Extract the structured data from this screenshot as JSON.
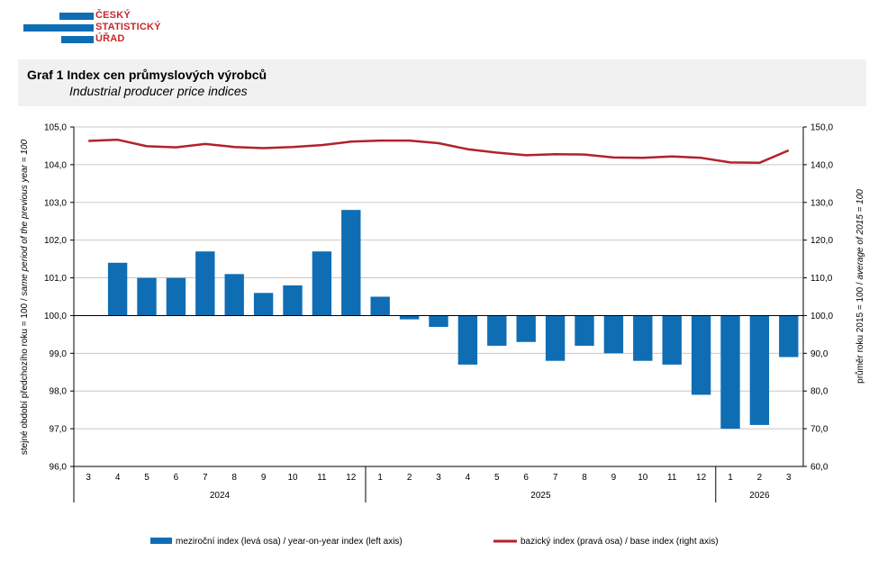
{
  "logo": {
    "line1": "ČESKÝ",
    "line2": "STATISTICKÝ",
    "line3": "ÚŘAD",
    "color_blue": "#0f6db4",
    "color_red": "#c8262c"
  },
  "header": {
    "title": "Graf 1 Index cen průmyslových výrobců",
    "subtitle": "Industrial producer price indices"
  },
  "chart_data": {
    "type": "bar",
    "title": "Graf 1 Index cen průmyslových výrobců",
    "subtitle": "Industrial producer price indices",
    "categories": [
      "3",
      "4",
      "5",
      "6",
      "7",
      "8",
      "9",
      "10",
      "11",
      "12",
      "1",
      "2",
      "3",
      "4",
      "5",
      "6",
      "7",
      "8",
      "9",
      "10",
      "11",
      "12",
      "1",
      "2",
      "3"
    ],
    "year_groups": [
      {
        "label": "2024",
        "count": 10
      },
      {
        "label": "2025",
        "count": 12
      },
      {
        "label": "2026",
        "count": 3
      }
    ],
    "ylabel_left_prefix": "stejné období předchozího roku = 100 / ",
    "ylabel_left_suffix": "same period of  the previous year = 100",
    "ylabel_right_prefix": "průměr roku 2015 = 100 / ",
    "ylabel_right_suffix": "average of 2015 = 100",
    "ylim_left": [
      96,
      105
    ],
    "ylim_right": [
      60,
      150
    ],
    "left_ticks": [
      "105,0",
      "104,0",
      "103,0",
      "102,0",
      "101,0",
      "100,0",
      "99,0",
      "98,0",
      "97,0",
      "96,0"
    ],
    "right_ticks": [
      "150,0",
      "140,0",
      "130,0",
      "120,0",
      "110,0",
      "100,0",
      "90,0",
      "80,0",
      "70,0",
      "60,0"
    ],
    "baseline": 100,
    "series": [
      {
        "name": "meziroční index (levá osa) / year-on-year index (left axis)",
        "type": "bar",
        "axis": "left",
        "color": "#0f6db4",
        "values": [
          null,
          101.4,
          101.0,
          101.0,
          101.7,
          101.1,
          100.6,
          100.8,
          101.7,
          102.8,
          100.5,
          99.9,
          99.7,
          98.7,
          99.2,
          99.3,
          98.8,
          99.2,
          99.0,
          98.8,
          98.7,
          97.9,
          97.0,
          97.1,
          98.9
        ]
      },
      {
        "name": "bazický index (pravá osa) / base index (right axis)",
        "type": "line",
        "axis": "right",
        "color": "#b3212b",
        "values": [
          146.3,
          146.6,
          144.9,
          144.6,
          145.5,
          144.7,
          144.4,
          144.7,
          145.2,
          146.1,
          146.4,
          146.4,
          145.7,
          144.1,
          143.2,
          142.5,
          142.8,
          142.7,
          141.9,
          141.8,
          142.2,
          141.8,
          140.6,
          140.5,
          143.8
        ]
      }
    ],
    "grid": true,
    "legend": "bottom"
  }
}
